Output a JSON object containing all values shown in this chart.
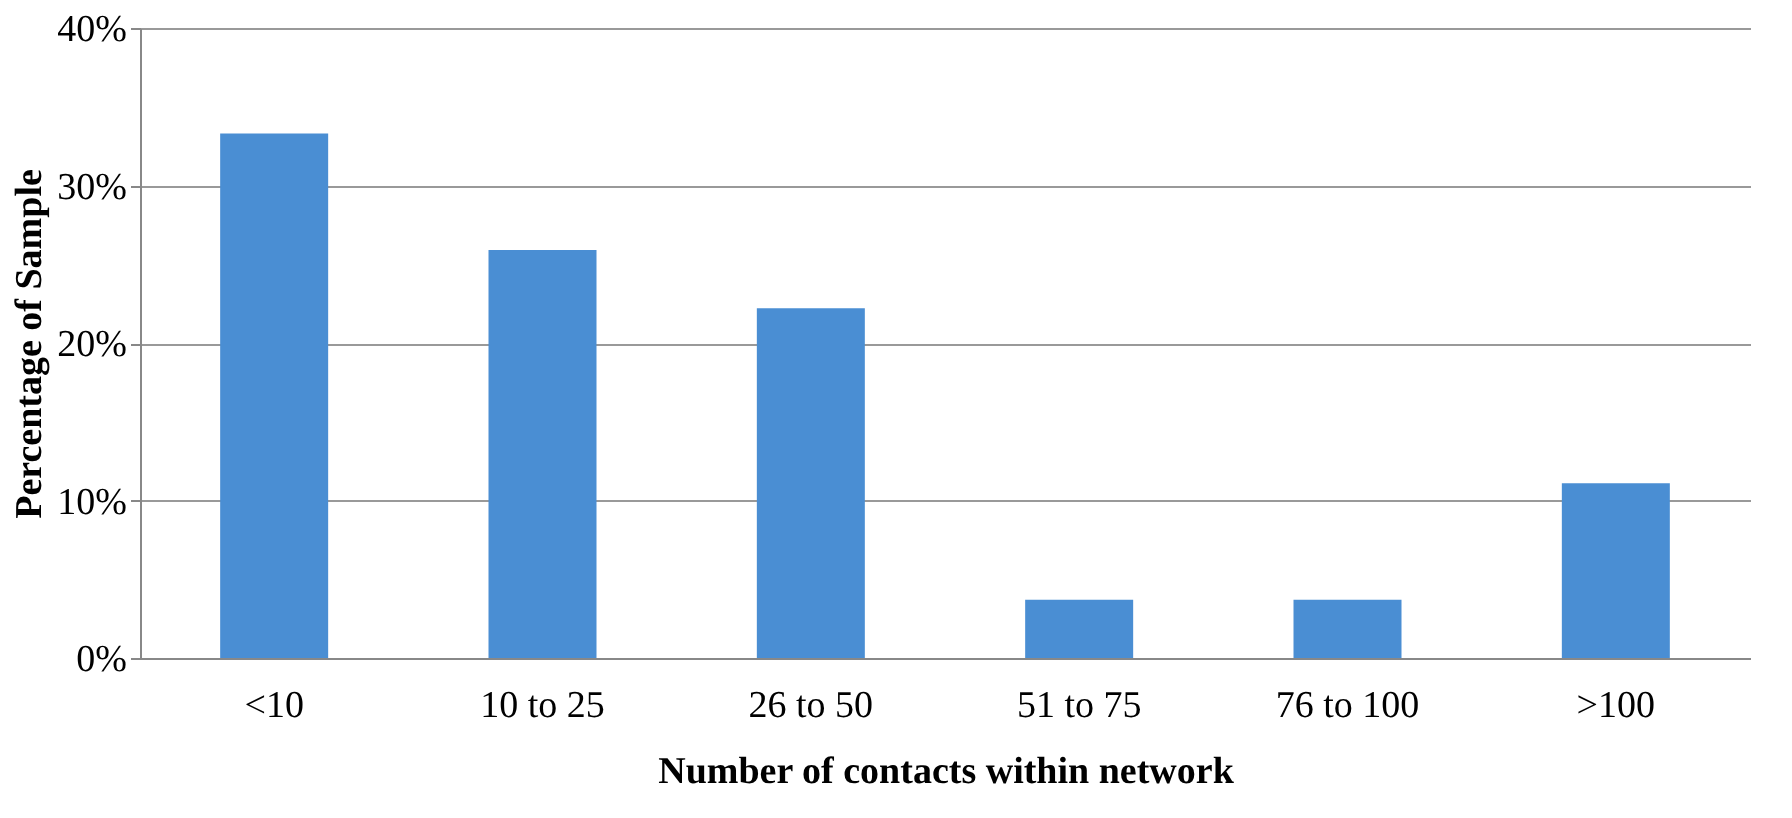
{
  "chart_data": {
    "type": "bar",
    "xlabel": "Number of contacts within network",
    "ylabel": "Percentage of Sample",
    "categories": [
      "<10",
      "10 to 25",
      "26 to 50",
      "51 to 75",
      "76 to 100",
      ">100"
    ],
    "values": [
      33.3,
      25.9,
      22.2,
      3.7,
      3.7,
      11.1
    ],
    "color": "#4a8ed3",
    "ylim": [
      0,
      40
    ],
    "yticks": [
      {
        "value": 0,
        "label": "0%"
      },
      {
        "value": 10,
        "label": "10%"
      },
      {
        "value": 20,
        "label": "20%"
      },
      {
        "value": 30,
        "label": "30%"
      },
      {
        "value": 40,
        "label": "40%"
      }
    ],
    "grid": "y"
  }
}
